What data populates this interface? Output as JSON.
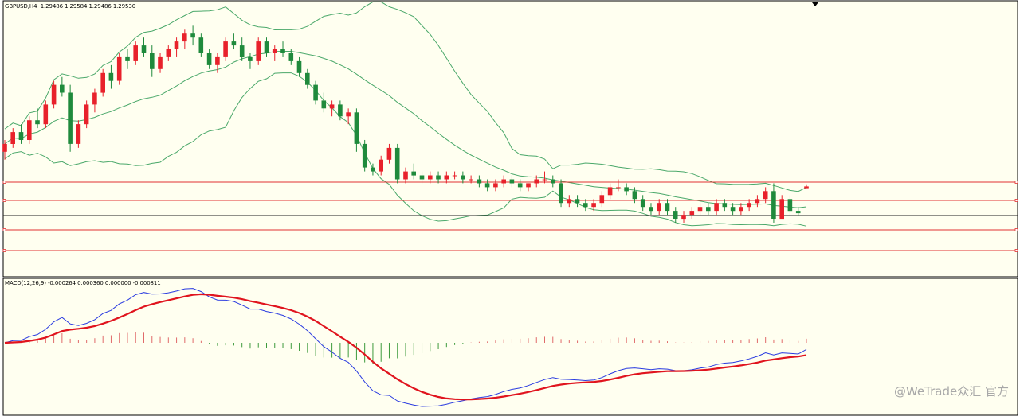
{
  "main_panel": {
    "symbol_label": "GBPUSD,H4  1.29486 1.29584 1.29486 1.29530"
  },
  "macd_panel": {
    "label": "MACD(12,26,9) -0.000264 0.000360 0.000000 -0.000811"
  },
  "watermark": "@WeTrade众汇 官方",
  "colors": {
    "background": "#fffff0",
    "bull_candle": "#e8212b",
    "bear_candle": "#1f8a3c",
    "bollinger": "#4aa86a",
    "level_line": "#e23232",
    "current_line": "#222222",
    "macd_line": "#2a3be0",
    "signal_line": "#e0141e",
    "hist_up": "#e06a6a",
    "hist_down": "#3c9a3c"
  },
  "chart_data": [
    {
      "type": "candlestick",
      "symbol": "GBPUSD",
      "timeframe": "H4",
      "last_bar": {
        "open": 1.29486,
        "high": 1.29584,
        "low": 1.29486,
        "close": 1.2953
      },
      "indicators": [
        "Bollinger Bands",
        "horizontal levels"
      ],
      "y_unit": "price",
      "candles_ohlc": [
        [
          1.3041,
          1.3071,
          1.3021,
          1.3061
        ],
        [
          1.3061,
          1.3101,
          1.3051,
          1.3091
        ],
        [
          1.3091,
          1.3111,
          1.3061,
          1.3071
        ],
        [
          1.3071,
          1.3131,
          1.3061,
          1.3121
        ],
        [
          1.3121,
          1.3151,
          1.3101,
          1.3111
        ],
        [
          1.3111,
          1.3171,
          1.3101,
          1.3161
        ],
        [
          1.3161,
          1.3221,
          1.3151,
          1.3211
        ],
        [
          1.3211,
          1.3231,
          1.3181,
          1.3191
        ],
        [
          1.3191,
          1.3211,
          1.3041,
          1.3061
        ],
        [
          1.3061,
          1.3121,
          1.3051,
          1.3111
        ],
        [
          1.3111,
          1.3171,
          1.3101,
          1.3161
        ],
        [
          1.3161,
          1.3201,
          1.3141,
          1.3191
        ],
        [
          1.3191,
          1.3251,
          1.3181,
          1.3241
        ],
        [
          1.3241,
          1.3261,
          1.3201,
          1.3221
        ],
        [
          1.3221,
          1.3291,
          1.3211,
          1.3281
        ],
        [
          1.3281,
          1.3301,
          1.3251,
          1.3271
        ],
        [
          1.3271,
          1.3321,
          1.3261,
          1.3311
        ],
        [
          1.3311,
          1.3331,
          1.3281,
          1.3291
        ],
        [
          1.3291,
          1.3311,
          1.3231,
          1.3251
        ],
        [
          1.3251,
          1.3291,
          1.3241,
          1.3281
        ],
        [
          1.3281,
          1.3311,
          1.3271,
          1.3301
        ],
        [
          1.3301,
          1.3331,
          1.3281,
          1.3321
        ],
        [
          1.3321,
          1.3351,
          1.3301,
          1.3341
        ],
        [
          1.3341,
          1.3361,
          1.3311,
          1.3331
        ],
        [
          1.3331,
          1.3341,
          1.3281,
          1.3291
        ],
        [
          1.3291,
          1.3301,
          1.3251,
          1.3261
        ],
        [
          1.3261,
          1.3291,
          1.3241,
          1.3281
        ],
        [
          1.3281,
          1.3331,
          1.3271,
          1.3321
        ],
        [
          1.3321,
          1.3341,
          1.3301,
          1.3311
        ],
        [
          1.3311,
          1.3331,
          1.3271,
          1.3281
        ],
        [
          1.3281,
          1.3291,
          1.3251,
          1.3271
        ],
        [
          1.3271,
          1.3331,
          1.3261,
          1.3321
        ],
        [
          1.3321,
          1.3331,
          1.3281,
          1.3291
        ],
        [
          1.3291,
          1.3311,
          1.3271,
          1.3301
        ],
        [
          1.3301,
          1.3321,
          1.3281,
          1.3291
        ],
        [
          1.3291,
          1.3301,
          1.3261,
          1.3271
        ],
        [
          1.3271,
          1.3281,
          1.3231,
          1.3241
        ],
        [
          1.3241,
          1.3251,
          1.3201,
          1.3211
        ],
        [
          1.3211,
          1.3221,
          1.3161,
          1.3171
        ],
        [
          1.3171,
          1.3191,
          1.3141,
          1.3151
        ],
        [
          1.3151,
          1.3171,
          1.3131,
          1.3161
        ],
        [
          1.3161,
          1.3171,
          1.3121,
          1.3131
        ],
        [
          1.3131,
          1.3151,
          1.3111,
          1.3141
        ],
        [
          1.3141,
          1.3151,
          1.3041,
          1.3061
        ],
        [
          1.3061,
          1.3071,
          1.2991,
          1.3001
        ],
        [
          1.3001,
          1.3011,
          1.2981,
          1.2991
        ],
        [
          1.2991,
          1.3031,
          1.2981,
          1.3021
        ],
        [
          1.3021,
          1.3061,
          1.3011,
          1.3051
        ],
        [
          1.3051,
          1.3061,
          1.2961,
          1.2971
        ],
        [
          1.2971,
          1.3001,
          1.2961,
          1.2991
        ],
        [
          1.2991,
          1.3011,
          1.2971,
          1.2981
        ],
        [
          1.2981,
          1.2991,
          1.2961,
          1.2971
        ],
        [
          1.2971,
          1.2991,
          1.2961,
          1.2981
        ],
        [
          1.2981,
          1.2991,
          1.2961,
          1.2971
        ],
        [
          1.2971,
          1.2991,
          1.2961,
          1.2981
        ],
        [
          1.2981,
          1.2991,
          1.2971,
          1.2981
        ],
        [
          1.2981,
          1.2991,
          1.2961,
          1.2971
        ],
        [
          1.2971,
          1.2981,
          1.2961,
          1.2971
        ],
        [
          1.2971,
          1.2981,
          1.2951,
          1.2961
        ],
        [
          1.2961,
          1.2971,
          1.2941,
          1.2951
        ],
        [
          1.2951,
          1.2971,
          1.2941,
          1.2961
        ],
        [
          1.2961,
          1.2981,
          1.2951,
          1.2971
        ],
        [
          1.2971,
          1.2981,
          1.2951,
          1.2961
        ],
        [
          1.2961,
          1.2971,
          1.2941,
          1.2951
        ],
        [
          1.2951,
          1.2961,
          1.2941,
          1.2961
        ],
        [
          1.2961,
          1.2981,
          1.2951,
          1.2971
        ],
        [
          1.2971,
          1.2991,
          1.2961,
          1.2971
        ],
        [
          1.2971,
          1.2981,
          1.2951,
          1.2961
        ],
        [
          1.2961,
          1.2971,
          1.2901,
          1.2911
        ],
        [
          1.2911,
          1.2931,
          1.2901,
          1.2921
        ],
        [
          1.2921,
          1.2931,
          1.2901,
          1.2911
        ],
        [
          1.2911,
          1.2921,
          1.2891,
          1.2901
        ],
        [
          1.2901,
          1.2921,
          1.2891,
          1.2911
        ],
        [
          1.2911,
          1.2941,
          1.2901,
          1.2931
        ],
        [
          1.2931,
          1.2961,
          1.2921,
          1.2951
        ],
        [
          1.2951,
          1.2971,
          1.2941,
          1.2951
        ],
        [
          1.2951,
          1.2961,
          1.2931,
          1.2941
        ],
        [
          1.2941,
          1.2951,
          1.2911,
          1.2921
        ],
        [
          1.2921,
          1.2931,
          1.2891,
          1.2901
        ],
        [
          1.2901,
          1.2911,
          1.2881,
          1.2891
        ],
        [
          1.2891,
          1.2921,
          1.2881,
          1.2911
        ],
        [
          1.2911,
          1.2921,
          1.2881,
          1.2891
        ],
        [
          1.2891,
          1.2901,
          1.2861,
          1.2871
        ],
        [
          1.2871,
          1.2891,
          1.2861,
          1.2881
        ],
        [
          1.2881,
          1.2901,
          1.2871,
          1.2891
        ],
        [
          1.2891,
          1.2911,
          1.2881,
          1.2901
        ],
        [
          1.2901,
          1.2911,
          1.2881,
          1.2891
        ],
        [
          1.2891,
          1.2921,
          1.2881,
          1.2911
        ],
        [
          1.2911,
          1.2921,
          1.2891,
          1.2901
        ],
        [
          1.2901,
          1.2911,
          1.2881,
          1.2891
        ],
        [
          1.2891,
          1.2911,
          1.2881,
          1.2901
        ],
        [
          1.2901,
          1.2921,
          1.2891,
          1.2911
        ],
        [
          1.2911,
          1.2931,
          1.2901,
          1.2921
        ],
        [
          1.2921,
          1.2951,
          1.2911,
          1.2941
        ],
        [
          1.2941,
          1.2961,
          1.2861,
          1.2871
        ],
        [
          1.2871,
          1.2931,
          1.2871,
          1.2921
        ],
        [
          1.2921,
          1.2931,
          1.2881,
          1.2891
        ],
        [
          1.2891,
          1.2901,
          1.2878,
          1.2885
        ],
        [
          1.29486,
          1.29584,
          1.29486,
          1.2953
        ]
      ]
    },
    {
      "type": "macd",
      "label": "MACD(12,26,9)",
      "params": [
        12,
        26,
        9
      ],
      "values_shown": [
        -0.000264,
        0.00036,
        0.0,
        -0.000811
      ],
      "y_unit": "price difference",
      "note_series": [
        "macd_line",
        "signal_line",
        "histogram"
      ]
    }
  ]
}
